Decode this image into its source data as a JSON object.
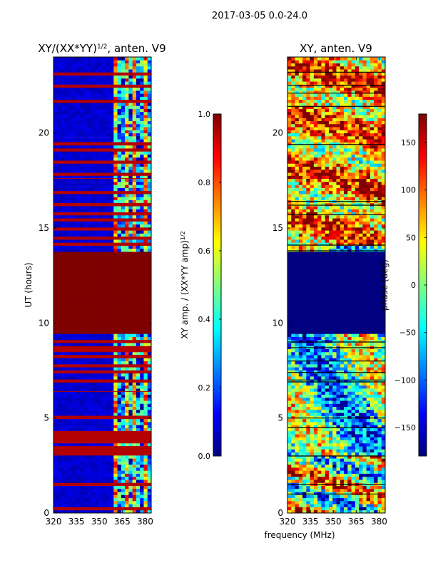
{
  "suptitle": "2017-03-05 0.0-24.0",
  "colors": {
    "jet_low": "#00007f",
    "jet_high": "#7f0000",
    "border": "#000000"
  },
  "chart_data": [
    {
      "type": "heatmap",
      "title_main": "XY/(XX*YY)",
      "title_exp": "1/2",
      "title_rest": ", anten. V9",
      "xlabel": "",
      "ylabel": "UT (hours)",
      "xlim": [
        320,
        384
      ],
      "ylim": [
        0,
        24
      ],
      "xticks": [
        320,
        335,
        350,
        365,
        380
      ],
      "yticks": [
        0,
        5,
        10,
        15,
        20
      ],
      "colorbar": {
        "label_main": "XY amp. / (XX*YY amp)",
        "label_exp": "1/2",
        "range": [
          0.0,
          1.0
        ],
        "ticks": [
          "0.0",
          "0.2",
          "0.4",
          "0.6",
          "0.8",
          "1.0"
        ],
        "tick_values": [
          0.0,
          0.2,
          0.4,
          0.6,
          0.8,
          1.0
        ]
      },
      "saturated_time_band_hours": [
        9.5,
        13.7
      ],
      "saturated_value": 1.0,
      "background_value": 0.05,
      "active_frequency_band_mhz": [
        360,
        384
      ],
      "flagged_time_rows_hours": [
        0.2,
        1.5,
        3.1,
        3.3,
        3.5,
        3.7,
        3.9,
        4.1,
        4.3,
        5.1,
        6.4,
        6.9,
        7.4,
        7.8,
        8.3,
        8.5,
        8.7,
        9.0,
        14.1,
        14.5,
        15.0,
        15.4,
        15.7,
        16.3,
        16.9,
        17.6,
        17.8,
        18.5,
        19.1,
        19.5,
        21.7,
        22.5,
        23.1
      ]
    },
    {
      "type": "heatmap",
      "title": "XY, anten. V9",
      "xlabel": "frequency (MHz)",
      "ylabel": "",
      "xlim": [
        320,
        384
      ],
      "ylim": [
        0,
        24
      ],
      "xticks": [
        320,
        335,
        350,
        365,
        380
      ],
      "yticks": [
        0,
        5,
        10,
        15,
        20
      ],
      "colorbar": {
        "label": "phase (deg)",
        "range": [
          -180,
          180
        ],
        "ticks": [
          "−150",
          "−100",
          "−50",
          "0",
          "50",
          "100",
          "150"
        ],
        "tick_values": [
          -150,
          -100,
          -50,
          0,
          50,
          100,
          150
        ]
      },
      "flat_phase_time_band_hours": [
        9.5,
        13.7
      ],
      "flat_phase_value": -180,
      "blank_time_rows_hours": [
        1.0,
        1.5,
        3.0,
        4.5,
        5.0,
        6.9,
        7.0,
        7.4,
        8.0,
        8.7,
        9.0,
        13.8,
        14.1,
        15.7,
        16.2,
        16.4,
        19.4,
        21.4,
        22.1,
        22.5,
        23.2
      ]
    }
  ]
}
